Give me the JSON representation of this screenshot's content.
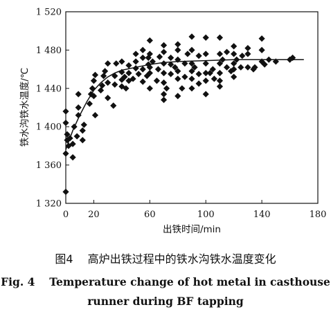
{
  "chart_data": {
    "type": "scatter",
    "ylabel": "铁水沟铁水温度/℃",
    "xlabel": "出铁时间/min",
    "xlim": [
      0,
      180
    ],
    "ylim": [
      1320,
      1520
    ],
    "xticks": [
      0,
      20,
      60,
      100,
      140,
      180
    ],
    "xtick_labels": [
      "0",
      "20",
      "60",
      "100",
      "140",
      "180"
    ],
    "yticks": [
      1320,
      1360,
      1400,
      1440,
      1480,
      1520
    ],
    "ytick_labels": [
      "1 320",
      "1 360",
      "1 400",
      "1 440",
      "1 480",
      "1 520"
    ],
    "grid": false,
    "marker": "diamond",
    "points": [
      [
        0,
        1332
      ],
      [
        0,
        1372
      ],
      [
        1,
        1386
      ],
      [
        1,
        1392
      ],
      [
        0,
        1404
      ],
      [
        0,
        1416
      ],
      [
        2,
        1380
      ],
      [
        3,
        1388
      ],
      [
        5,
        1368
      ],
      [
        5,
        1382
      ],
      [
        6,
        1400
      ],
      [
        8,
        1390
      ],
      [
        9,
        1412
      ],
      [
        9,
        1420
      ],
      [
        9,
        1434
      ],
      [
        12,
        1386
      ],
      [
        12,
        1396
      ],
      [
        13,
        1402
      ],
      [
        17,
        1424
      ],
      [
        18,
        1434
      ],
      [
        19,
        1440
      ],
      [
        20,
        1448
      ],
      [
        21,
        1454
      ],
      [
        20,
        1432
      ],
      [
        21,
        1412
      ],
      [
        26,
        1443
      ],
      [
        27,
        1453
      ],
      [
        28,
        1458
      ],
      [
        25,
        1438
      ],
      [
        30,
        1430
      ],
      [
        30,
        1446
      ],
      [
        30,
        1466
      ],
      [
        34,
        1422
      ],
      [
        35,
        1444
      ],
      [
        35,
        1453
      ],
      [
        36,
        1466
      ],
      [
        40,
        1442
      ],
      [
        40,
        1449
      ],
      [
        40,
        1457
      ],
      [
        40,
        1468
      ],
      [
        42,
        1452
      ],
      [
        43,
        1440
      ],
      [
        45,
        1448
      ],
      [
        45,
        1456
      ],
      [
        45,
        1464
      ],
      [
        48,
        1450
      ],
      [
        50,
        1461
      ],
      [
        50,
        1468
      ],
      [
        50,
        1476
      ],
      [
        52,
        1455
      ],
      [
        55,
        1447
      ],
      [
        55,
        1460
      ],
      [
        55,
        1472
      ],
      [
        55,
        1480
      ],
      [
        58,
        1453
      ],
      [
        59,
        1465
      ],
      [
        59,
        1472
      ],
      [
        60,
        1440
      ],
      [
        60,
        1456
      ],
      [
        60,
        1462
      ],
      [
        60,
        1476
      ],
      [
        60,
        1490
      ],
      [
        62,
        1468
      ],
      [
        65,
        1448
      ],
      [
        66,
        1460
      ],
      [
        67,
        1473
      ],
      [
        70,
        1428
      ],
      [
        70,
        1434
      ],
      [
        70,
        1446
      ],
      [
        70,
        1456
      ],
      [
        70,
        1466
      ],
      [
        70,
        1478
      ],
      [
        70,
        1485
      ],
      [
        72,
        1440
      ],
      [
        75,
        1455
      ],
      [
        75,
        1465
      ],
      [
        75,
        1472
      ],
      [
        78,
        1462
      ],
      [
        80,
        1432
      ],
      [
        80,
        1450
      ],
      [
        80,
        1458
      ],
      [
        80,
        1470
      ],
      [
        80,
        1480
      ],
      [
        80,
        1486
      ],
      [
        83,
        1440
      ],
      [
        85,
        1452
      ],
      [
        85,
        1466
      ],
      [
        87,
        1476
      ],
      [
        90,
        1440
      ],
      [
        90,
        1450
      ],
      [
        90,
        1458
      ],
      [
        90,
        1466
      ],
      [
        90,
        1480
      ],
      [
        90,
        1494
      ],
      [
        92,
        1462
      ],
      [
        95,
        1445
      ],
      [
        95,
        1455
      ],
      [
        95,
        1474
      ],
      [
        100,
        1434
      ],
      [
        100,
        1448
      ],
      [
        100,
        1456
      ],
      [
        100,
        1466
      ],
      [
        100,
        1476
      ],
      [
        100,
        1493
      ],
      [
        103,
        1456
      ],
      [
        105,
        1460
      ],
      [
        106,
        1450
      ],
      [
        110,
        1442
      ],
      [
        110,
        1448
      ],
      [
        110,
        1456
      ],
      [
        110,
        1466
      ],
      [
        110,
        1476
      ],
      [
        110,
        1493
      ],
      [
        112,
        1470
      ],
      [
        115,
        1462
      ],
      [
        115,
        1478
      ],
      [
        118,
        1458
      ],
      [
        120,
        1452
      ],
      [
        120,
        1460
      ],
      [
        120,
        1466
      ],
      [
        120,
        1476
      ],
      [
        120,
        1484
      ],
      [
        122,
        1470
      ],
      [
        125,
        1462
      ],
      [
        126,
        1474
      ],
      [
        130,
        1462
      ],
      [
        130,
        1476
      ],
      [
        130,
        1482
      ],
      [
        134,
        1460
      ],
      [
        135,
        1462
      ],
      [
        140,
        1468
      ],
      [
        140,
        1480
      ],
      [
        140,
        1492
      ],
      [
        142,
        1465
      ],
      [
        145,
        1470
      ],
      [
        150,
        1468
      ],
      [
        160,
        1470
      ],
      [
        162,
        1472
      ]
    ],
    "trend": [
      [
        0,
        1376
      ],
      [
        5,
        1396
      ],
      [
        10,
        1412
      ],
      [
        15,
        1426
      ],
      [
        20,
        1438
      ],
      [
        25,
        1446
      ],
      [
        30,
        1452
      ],
      [
        35,
        1456
      ],
      [
        40,
        1459
      ],
      [
        50,
        1462
      ],
      [
        60,
        1465
      ],
      [
        70,
        1467
      ],
      [
        80,
        1468
      ],
      [
        100,
        1469
      ],
      [
        120,
        1470
      ],
      [
        140,
        1470
      ],
      [
        170,
        1470
      ]
    ]
  },
  "caption": {
    "cn": "图4　 高炉出铁过程中的铁水沟铁水温度变化",
    "en_line1": "Fig. 4　 Temperature change of hot metal in casthouse",
    "en_line2": "runner during BF tapping"
  }
}
